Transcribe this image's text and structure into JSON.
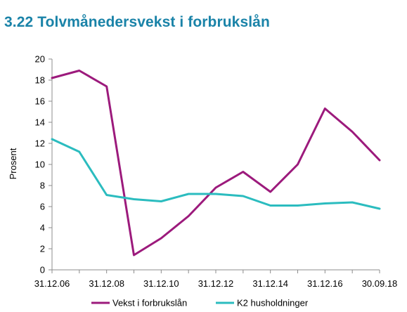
{
  "chart_data": {
    "type": "line",
    "title": "3.22 Tolvmånedersvekst i forbrukslån",
    "ylabel": "Prosent",
    "xlabel": "",
    "ylim": [
      0,
      20
    ],
    "yticks": [
      0,
      2,
      4,
      6,
      8,
      10,
      12,
      14,
      16,
      18,
      20
    ],
    "x": [
      "31.12.06",
      "31.12.07",
      "31.12.08",
      "31.12.09",
      "31.12.10",
      "31.12.11",
      "31.12.12",
      "31.12.13",
      "31.12.14",
      "31.12.15",
      "31.12.16",
      "31.12.17",
      "30.09.18"
    ],
    "xtick_labels": [
      "31.12.06",
      "",
      "31.12.08",
      "",
      "31.12.10",
      "",
      "31.12.12",
      "",
      "31.12.14",
      "",
      "31.12.16",
      "",
      "30.09.18"
    ],
    "legend_position": "bottom",
    "grid": false,
    "series": [
      {
        "name": "Vekst i forbrukslån",
        "color": "#9c1a7c",
        "values": [
          18.2,
          18.9,
          17.4,
          1.4,
          3.0,
          5.1,
          7.8,
          9.3,
          7.4,
          10.0,
          15.3,
          13.1,
          10.4
        ]
      },
      {
        "name": "K2 husholdninger",
        "color": "#2bbcbf",
        "values": [
          12.4,
          11.2,
          7.1,
          6.7,
          6.5,
          7.2,
          7.2,
          7.0,
          6.1,
          6.1,
          6.3,
          6.4,
          5.8
        ]
      }
    ]
  }
}
